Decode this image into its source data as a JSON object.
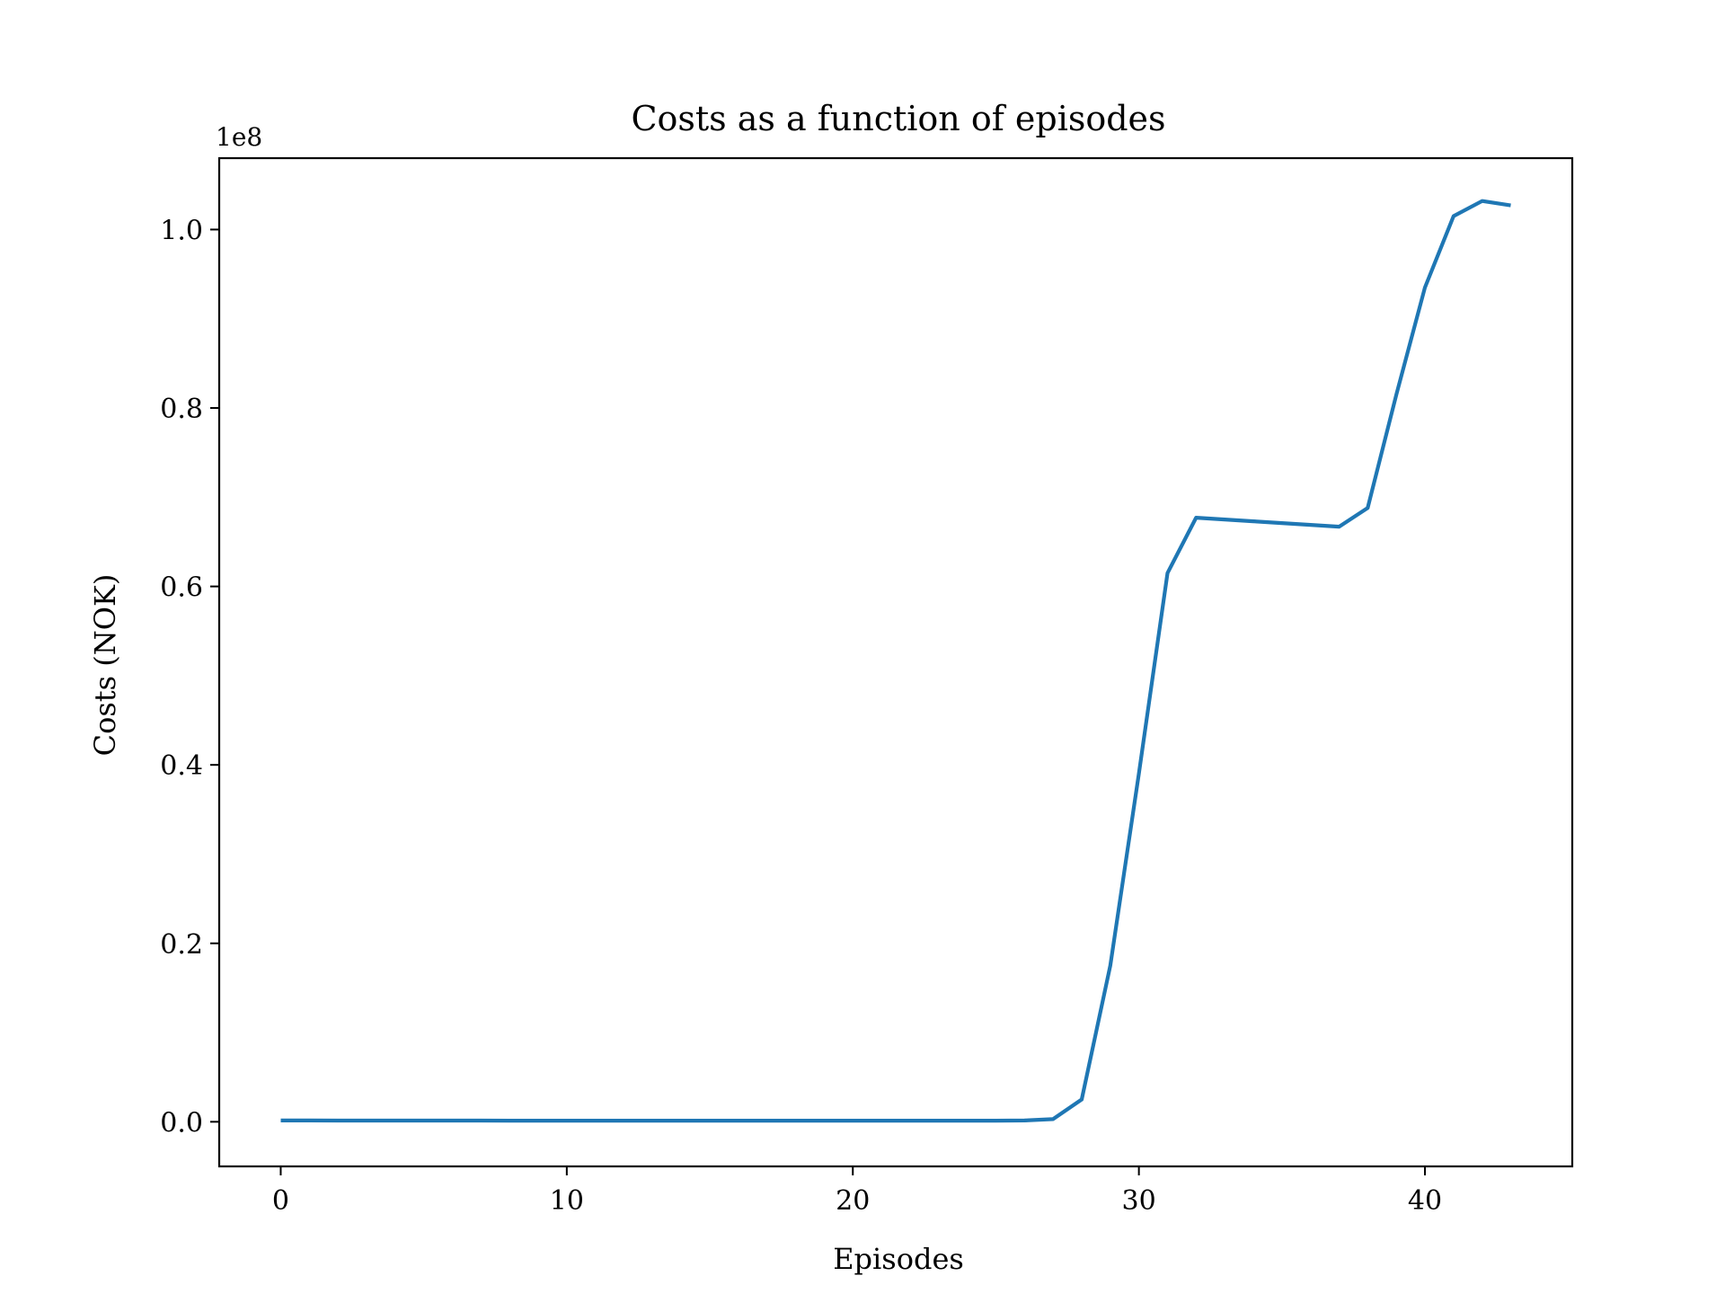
{
  "chart_data": {
    "type": "line",
    "title": "Costs as a function of episodes",
    "xlabel": "Episodes",
    "ylabel": "Costs (NOK)",
    "y_offset_label": "1e8",
    "xlim": [
      -2.15,
      45.15
    ],
    "ylim": [
      -0.05,
      1.08
    ],
    "y_scale_multiplier": 100000000,
    "xticks": [
      0,
      10,
      20,
      30,
      40
    ],
    "xtick_labels": [
      "0",
      "10",
      "20",
      "30",
      "40"
    ],
    "yticks": [
      0.0,
      0.2,
      0.4,
      0.6,
      0.8,
      1.0
    ],
    "ytick_labels": [
      "0.0",
      "0.2",
      "0.4",
      "0.6",
      "0.8",
      "1.0"
    ],
    "grid": false,
    "line_color": "#1f77b4",
    "series": [
      {
        "x": [
          0,
          1,
          2,
          3,
          4,
          5,
          6,
          7,
          8,
          9,
          10,
          11,
          12,
          13,
          14,
          15,
          16,
          17,
          18,
          19,
          20,
          21,
          22,
          23,
          24,
          25,
          26,
          27,
          28,
          29,
          30,
          31,
          32,
          33,
          34,
          35,
          36,
          37,
          38,
          39,
          40,
          41,
          42,
          43
        ],
        "values": [
          0.0015,
          0.0015,
          0.0014,
          0.0014,
          0.0014,
          0.0014,
          0.0014,
          0.0014,
          0.0013,
          0.0013,
          0.0013,
          0.0013,
          0.0013,
          0.0013,
          0.0013,
          0.0013,
          0.0013,
          0.0013,
          0.0013,
          0.0013,
          0.0013,
          0.0013,
          0.0013,
          0.0013,
          0.0013,
          0.0013,
          0.0015,
          0.003,
          0.025,
          0.175,
          0.39,
          0.615,
          0.677,
          0.675,
          0.673,
          0.671,
          0.669,
          0.667,
          0.688,
          0.815,
          0.935,
          1.015,
          1.032,
          1.027
        ]
      }
    ]
  }
}
